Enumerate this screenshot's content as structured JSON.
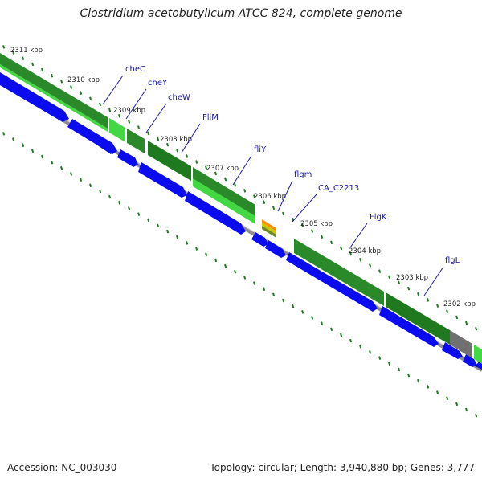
{
  "title": "Clostridium acetobutylicum ATCC 824, complete genome",
  "accession": "Accession: NC_003030",
  "summary": "Topology: circular; Length: 3,940,880 bp; Genes: 3,777",
  "colors": {
    "forward_gene": "#0b0bf0",
    "forward_gene_dark": "#0000a8",
    "cds_dark": "#1f7a1f",
    "cds_light": "#43d843",
    "backbone": "#8a8a8a",
    "tick": "#1f7a1f",
    "label": "#1a1aa0",
    "pseudo": "#707070"
  },
  "ticks": [
    {
      "label": "2311 kbp"
    },
    {
      "label": "2310 kbp"
    },
    {
      "label": "2309 kbp"
    },
    {
      "label": "2308 kbp"
    },
    {
      "label": "2307 kbp"
    },
    {
      "label": "2306 kbp"
    },
    {
      "label": "2305 kbp"
    },
    {
      "label": "2304 kbp"
    },
    {
      "label": "2303 kbp"
    },
    {
      "label": "2302 kbp"
    }
  ],
  "genes": [
    {
      "name": "cheC"
    },
    {
      "name": "cheY"
    },
    {
      "name": "cheW"
    },
    {
      "name": "FliM"
    },
    {
      "name": "fliY"
    },
    {
      "name": "flgm"
    },
    {
      "name": "CA_C2213"
    },
    {
      "name": "FlgK"
    },
    {
      "name": "flgL"
    }
  ]
}
